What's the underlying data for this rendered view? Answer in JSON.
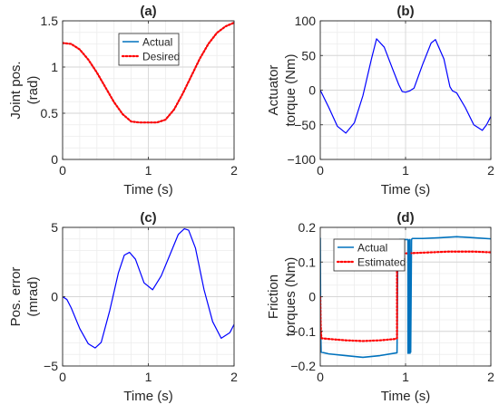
{
  "chart_data": [
    {
      "type": "line",
      "title": "(a)",
      "xlabel": "Time (s)",
      "ylabel": [
        "Joint pos.",
        "(rad)"
      ],
      "xlim": [
        0,
        2
      ],
      "ylim": [
        0,
        1.5
      ],
      "xticks": [
        0,
        1,
        2
      ],
      "xtick_labels": [
        "0",
        "1",
        "2"
      ],
      "yticks": [
        0,
        0.5,
        1,
        1.5
      ],
      "ytick_labels": [
        "0",
        "0.5",
        "1",
        "1.5"
      ],
      "grid": true,
      "legend": "top-center",
      "series": [
        {
          "name": "Actual",
          "color": "#0072BD",
          "style": "solid",
          "x": [
            0,
            0.1,
            0.2,
            0.3,
            0.4,
            0.5,
            0.6,
            0.7,
            0.8,
            0.9,
            1.0,
            1.1,
            1.2,
            1.3,
            1.4,
            1.5,
            1.6,
            1.7,
            1.8,
            1.9,
            2.0
          ],
          "y": [
            1.26,
            1.25,
            1.19,
            1.08,
            0.94,
            0.78,
            0.62,
            0.49,
            0.41,
            0.4,
            0.4,
            0.4,
            0.43,
            0.54,
            0.71,
            0.9,
            1.09,
            1.25,
            1.37,
            1.44,
            1.48
          ]
        },
        {
          "name": "Desired",
          "color": "#FF0000",
          "style": "dotted",
          "x": [
            0,
            0.1,
            0.2,
            0.3,
            0.4,
            0.5,
            0.6,
            0.7,
            0.8,
            0.9,
            1.0,
            1.1,
            1.2,
            1.3,
            1.4,
            1.5,
            1.6,
            1.7,
            1.8,
            1.9,
            2.0
          ],
          "y": [
            1.26,
            1.25,
            1.19,
            1.08,
            0.94,
            0.78,
            0.62,
            0.49,
            0.41,
            0.4,
            0.4,
            0.4,
            0.43,
            0.54,
            0.71,
            0.9,
            1.09,
            1.25,
            1.37,
            1.44,
            1.48
          ]
        }
      ]
    },
    {
      "type": "line",
      "title": "(b)",
      "xlabel": "Time (s)",
      "ylabel": [
        "Actuator",
        "torque (Nm)"
      ],
      "xlim": [
        0,
        2
      ],
      "ylim": [
        -100,
        100
      ],
      "xticks": [
        0,
        1,
        2
      ],
      "xtick_labels": [
        "0",
        "1",
        "2"
      ],
      "yticks": [
        -100,
        -50,
        0,
        50,
        100
      ],
      "ytick_labels": [
        "−100",
        "−50",
        "0",
        "50",
        "100"
      ],
      "grid": true,
      "legend": "none",
      "series": [
        {
          "name": "",
          "color": "#0000FF",
          "style": "solid",
          "x": [
            0,
            0.1,
            0.2,
            0.3,
            0.4,
            0.5,
            0.6,
            0.66,
            0.75,
            0.85,
            0.92,
            0.96,
            1.0,
            1.05,
            1.1,
            1.2,
            1.3,
            1.35,
            1.45,
            1.52,
            1.55,
            1.6,
            1.7,
            1.8,
            1.9,
            1.95,
            2.0
          ],
          "y": [
            0,
            -25,
            -52,
            -62,
            -47,
            -8,
            45,
            74,
            62,
            30,
            8,
            -2,
            -3,
            -1,
            3,
            37,
            68,
            73,
            45,
            5,
            -1,
            -4,
            -25,
            -50,
            -58,
            -50,
            -38
          ]
        }
      ]
    },
    {
      "type": "line",
      "title": "(c)",
      "xlabel": "Time (s)",
      "ylabel": [
        "Pos. error",
        "(mrad)"
      ],
      "xlim": [
        0,
        2
      ],
      "ylim": [
        -5,
        5
      ],
      "xticks": [
        0,
        1,
        2
      ],
      "xtick_labels": [
        "0",
        "1",
        "2"
      ],
      "yticks": [
        -5,
        0,
        5
      ],
      "ytick_labels": [
        "−5",
        "0",
        "5"
      ],
      "grid": true,
      "legend": "none",
      "series": [
        {
          "name": "",
          "color": "#0000FF",
          "style": "solid",
          "x": [
            0,
            0.05,
            0.1,
            0.2,
            0.3,
            0.38,
            0.45,
            0.55,
            0.65,
            0.72,
            0.78,
            0.85,
            0.95,
            1.05,
            1.15,
            1.25,
            1.35,
            1.42,
            1.47,
            1.55,
            1.65,
            1.75,
            1.85,
            1.95,
            2.0
          ],
          "y": [
            0,
            -0.2,
            -0.8,
            -2.3,
            -3.4,
            -3.7,
            -3.3,
            -1.0,
            1.7,
            3.0,
            3.2,
            2.7,
            1.0,
            0.5,
            1.5,
            3.0,
            4.5,
            4.9,
            4.8,
            3.5,
            0.5,
            -1.8,
            -3.0,
            -2.6,
            -2.0
          ]
        }
      ]
    },
    {
      "type": "line",
      "title": "(d)",
      "xlabel": "Time (s)",
      "ylabel": [
        "Friction",
        "torques (Nm)"
      ],
      "xlim": [
        0,
        2
      ],
      "ylim": [
        -0.2,
        0.2
      ],
      "xticks": [
        0,
        1,
        2
      ],
      "xtick_labels": [
        "0",
        "1",
        "2"
      ],
      "yticks": [
        -0.2,
        -0.1,
        0,
        0.1,
        0.2
      ],
      "ytick_labels": [
        "−0.2",
        "−0.1",
        "0",
        "0.1",
        "0.2"
      ],
      "grid": true,
      "legend": "top-left",
      "series": [
        {
          "name": "Actual",
          "color": "#0072BD",
          "style": "solid",
          "x": [
            0,
            0.005,
            0.01,
            0.1,
            0.3,
            0.5,
            0.7,
            0.9,
            0.91,
            0.93,
            0.95,
            1.0,
            1.03,
            1.04,
            1.05,
            1.06,
            1.07,
            1.08,
            1.2,
            1.4,
            1.6,
            1.8,
            2.0
          ],
          "y": [
            0.17,
            -0.1,
            -0.16,
            -0.165,
            -0.17,
            -0.175,
            -0.17,
            -0.162,
            0.16,
            0.165,
            0.165,
            0.165,
            0.165,
            -0.16,
            0.165,
            -0.16,
            0.165,
            0.168,
            0.168,
            0.17,
            0.173,
            0.17,
            0.167
          ]
        },
        {
          "name": "Estimated",
          "color": "#FF0000",
          "style": "dotted",
          "x": [
            0,
            0.005,
            0.01,
            0.015,
            0.1,
            0.3,
            0.5,
            0.7,
            0.88,
            0.9,
            0.9,
            0.95,
            1.0,
            1.2,
            1.5,
            1.8,
            2.0
          ],
          "y": [
            0,
            -0.08,
            -0.11,
            -0.12,
            -0.122,
            -0.126,
            -0.128,
            -0.126,
            -0.122,
            -0.12,
            0.12,
            0.124,
            0.125,
            0.127,
            0.13,
            0.13,
            0.128
          ]
        }
      ]
    }
  ]
}
